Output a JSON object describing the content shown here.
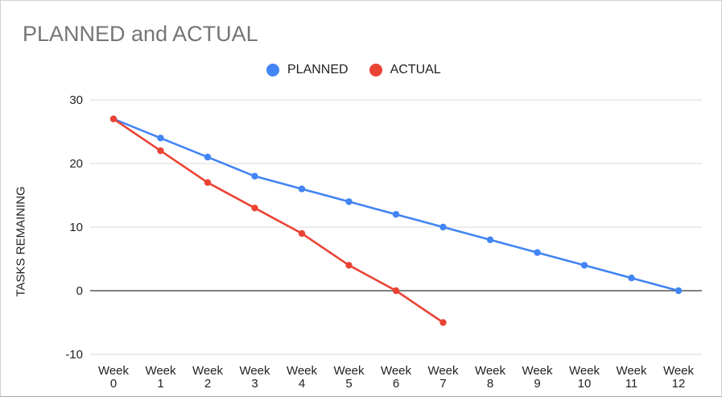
{
  "chart_data": {
    "type": "line",
    "title": "PLANNED and ACTUAL",
    "xlabel": "",
    "ylabel": "TASKS REMAINING",
    "ylim": [
      -10,
      30
    ],
    "yticks": [
      -10,
      0,
      10,
      20,
      30
    ],
    "grid": true,
    "legend_position": "top",
    "categories": [
      "Week 0",
      "Week 1",
      "Week 2",
      "Week 3",
      "Week 4",
      "Week 5",
      "Week 6",
      "Week 7",
      "Week 8",
      "Week 9",
      "Week 10",
      "Week 11",
      "Week 12"
    ],
    "series": [
      {
        "name": "PLANNED",
        "color": "#4285f4",
        "values": [
          27,
          24,
          21,
          18,
          16,
          14,
          12,
          10,
          8,
          6,
          4,
          2,
          0
        ]
      },
      {
        "name": "ACTUAL",
        "color": "#ea4335",
        "values": [
          27,
          22,
          17,
          13,
          9,
          4,
          0,
          -5,
          null,
          null,
          null,
          null,
          null
        ]
      }
    ]
  }
}
